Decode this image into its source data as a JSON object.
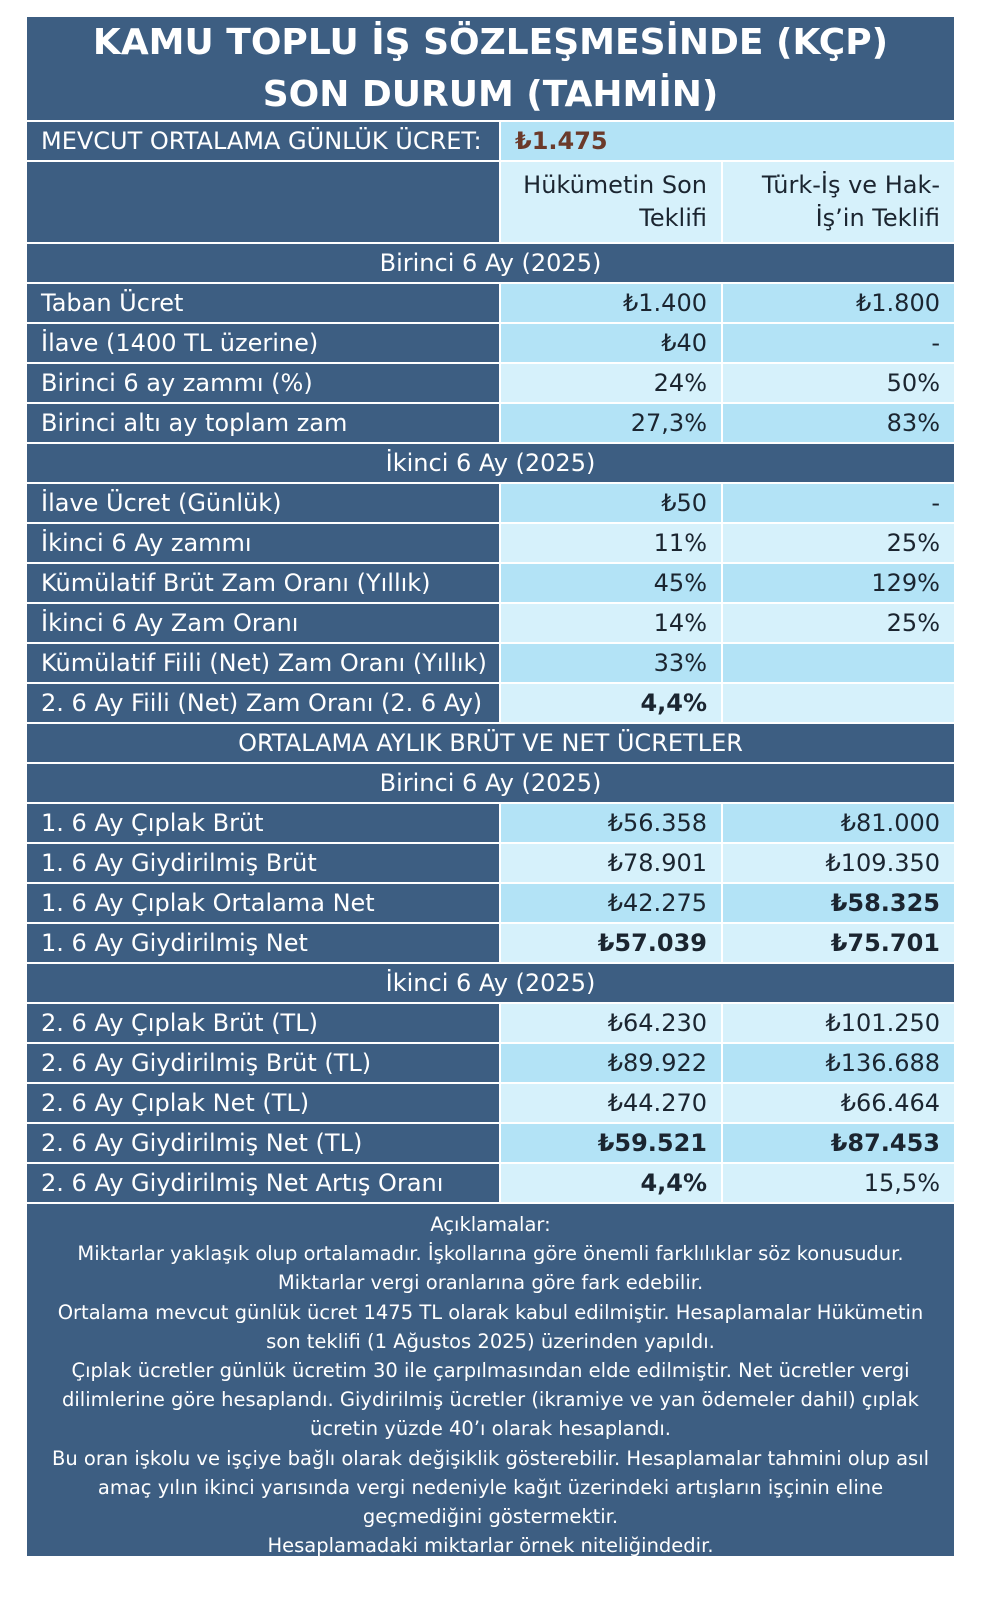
{
  "title": "KAMU TOPLU İŞ SÖZLEŞMESİNDE (KÇP) SON DURUM (TAHMİN)",
  "current_wage": {
    "label": "MEVCUT ORTALAMA GÜNLÜK ÜCRET:",
    "value": "₺1.475"
  },
  "columns": {
    "gov": "Hükümetin Son Teklifi",
    "union": "Türk-İş ve Hak-İş’in Teklifi"
  },
  "sections": {
    "first_half_rates": "Birinci 6 Ay (2025)",
    "second_half_rates": "İkinci 6 Ay (2025)",
    "monthly_title": "ORTALAMA AYLIK BRÜT VE NET ÜCRETLER",
    "first_half_monthly": "Birinci 6 Ay (2025)",
    "second_half_monthly": "İkinci 6 Ay (2025)"
  },
  "first_half_rows": [
    {
      "label": "Taban Ücret",
      "gov": "₺1.400",
      "union": "₺1.800"
    },
    {
      "label": "İlave (1400 TL üzerine)",
      "gov": "₺40",
      "union": "-"
    },
    {
      "label": "Birinci 6 ay zammı (%)",
      "gov": "24%",
      "union": "50%"
    },
    {
      "label": "Birinci altı ay toplam zam",
      "gov": "27,3%",
      "union": "83%"
    }
  ],
  "second_half_rows": [
    {
      "label": "İlave Ücret (Günlük)",
      "gov": "₺50",
      "union": "-"
    },
    {
      "label": "İkinci 6 Ay zammı",
      "gov": "11%",
      "union": "25%"
    },
    {
      "label": "Kümülatif Brüt Zam Oranı (Yıllık)",
      "gov": "45%",
      "union": "129%"
    },
    {
      "label": "İkinci 6 Ay Zam Oranı",
      "gov": "14%",
      "union": "25%"
    },
    {
      "label": "Kümülatif Fiili (Net) Zam Oranı (Yıllık)",
      "gov": "33%",
      "union": ""
    },
    {
      "label": "2. 6 Ay Fiili (Net) Zam Oranı (2. 6 Ay)",
      "gov": "4,4%",
      "union": ""
    }
  ],
  "first_half_monthly_rows": [
    {
      "label": "1. 6 Ay Çıplak Brüt",
      "gov": "₺56.358",
      "union": "₺81.000"
    },
    {
      "label": "1. 6 Ay Giydirilmiş Brüt",
      "gov": "₺78.901",
      "union": "₺109.350"
    },
    {
      "label": "1. 6 Ay Çıplak Ortalama Net",
      "gov": "₺42.275",
      "union": "₺58.325"
    },
    {
      "label": "1. 6 Ay Giydirilmiş Net",
      "gov": "₺57.039",
      "union": "₺75.701"
    }
  ],
  "second_half_monthly_rows": [
    {
      "label": "2. 6 Ay Çıplak Brüt (TL)",
      "gov": "₺64.230",
      "union": "₺101.250"
    },
    {
      "label": "2. 6 Ay Giydirilmiş Brüt (TL)",
      "gov": "₺89.922",
      "union": "₺136.688"
    },
    {
      "label": "2. 6 Ay Çıplak Net (TL)",
      "gov": "₺44.270",
      "union": "₺66.464"
    },
    {
      "label": "2. 6 Ay Giydirilmiş Net (TL)",
      "gov": "₺59.521",
      "union": "₺87.453"
    },
    {
      "label": "2. 6 Ay Giydirilmiş Net Artış Oranı",
      "gov": "4,4%",
      "union": "15,5%"
    }
  ],
  "notes": {
    "heading": "Açıklamalar:",
    "lines": [
      "Miktarlar yaklaşık olup ortalamadır. İşkollarına göre önemli farklılıklar söz konusudur.",
      "Miktarlar vergi oranlarına göre fark edebilir.",
      "Ortalama mevcut günlük ücret 1475 TL olarak kabul edilmiştir. Hesaplamalar Hükümetin son teklifi (1 Ağustos 2025) üzerinden yapıldı.",
      "Çıplak ücretler günlük ücretim 30 ile çarpılmasından elde edilmiştir. Net ücretler vergi dilimlerine göre hesaplandı. Giydirilmiş ücretler (ikramiye ve yan ödemeler dahil) çıplak ücretin yüzde 40’ı olarak hesaplandı.",
      "Bu oran işkolu ve işçiye bağlı olarak değişiklik gösterebilir. Hesaplamalar tahmini olup asıl amaç yılın ikinci yarısında vergi nedeniyle kağıt üzerindeki artışların işçinin eline geçmediğini göstermektir.",
      "Hesaplamadaki miktarlar örnek niteliğindedir."
    ]
  }
}
